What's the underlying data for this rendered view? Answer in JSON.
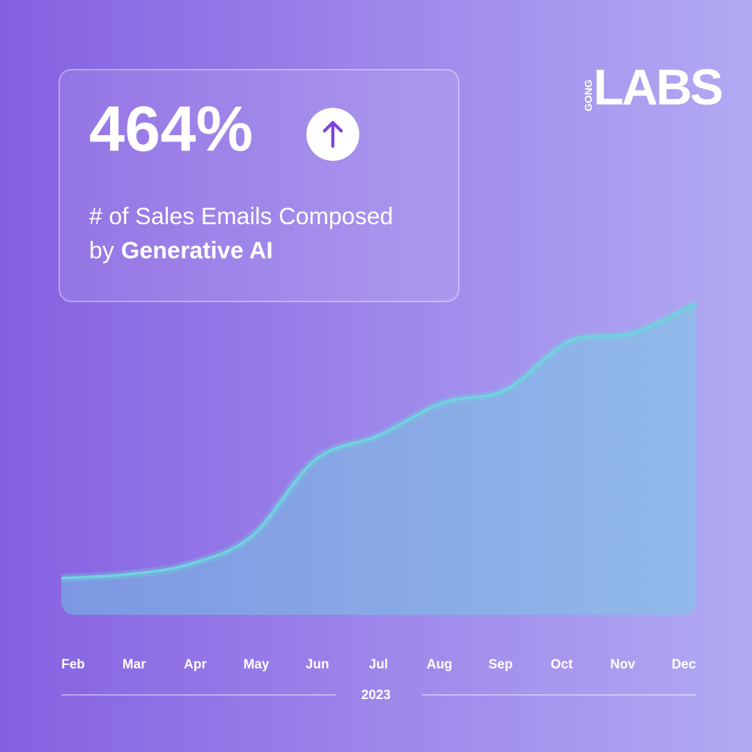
{
  "chart_data": {
    "type": "area",
    "callout": "464%",
    "subtitle": [
      "# of Sales Emails Composed",
      "by",
      "Generative AI"
    ],
    "brand": [
      "GONG",
      "LABS"
    ],
    "x_label": "2023",
    "categories": [
      "Feb",
      "Mar",
      "Apr",
      "May",
      "Jun",
      "Jul",
      "Aug",
      "Sep",
      "Oct",
      "Nov",
      "Dec"
    ],
    "values": [
      100,
      106,
      123,
      171,
      300,
      341,
      396,
      418,
      500,
      514,
      564
    ],
    "color": "#6fd3df",
    "ylim": [
      38,
      600
    ]
  }
}
